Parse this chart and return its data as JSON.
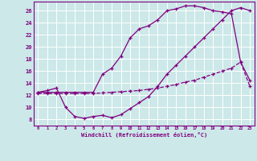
{
  "background_color": "#cce8e8",
  "grid_color": "#aacccc",
  "line_color": "#800080",
  "xlabel": "Windchill (Refroidissement éolien,°C)",
  "xlim": [
    -0.5,
    23.5
  ],
  "ylim": [
    7,
    27.5
  ],
  "yticks": [
    8,
    10,
    12,
    14,
    16,
    18,
    20,
    22,
    24,
    26
  ],
  "xticks": [
    0,
    1,
    2,
    3,
    4,
    5,
    6,
    7,
    8,
    9,
    10,
    11,
    12,
    13,
    14,
    15,
    16,
    17,
    18,
    19,
    20,
    21,
    22,
    23
  ],
  "curve1_x": [
    0,
    1,
    2,
    3,
    4,
    5,
    6,
    7,
    8,
    9,
    10,
    11,
    12,
    13,
    14,
    15,
    16,
    17,
    18,
    19,
    20,
    21,
    22,
    23
  ],
  "curve1_y": [
    12.5,
    12.8,
    13.2,
    10.0,
    8.5,
    8.2,
    8.5,
    8.7,
    8.3,
    8.8,
    9.8,
    10.8,
    11.8,
    13.5,
    15.5,
    17.0,
    18.5,
    20.0,
    21.5,
    23.0,
    24.5,
    26.0,
    26.5,
    26.0
  ],
  "curve2_x": [
    0,
    1,
    2,
    3,
    4,
    5,
    6,
    7,
    8,
    9,
    10,
    11,
    12,
    13,
    14,
    15,
    16,
    17,
    18,
    19,
    20,
    21,
    22,
    23
  ],
  "curve2_y": [
    12.5,
    12.5,
    12.5,
    12.5,
    12.5,
    12.5,
    12.5,
    15.5,
    16.5,
    18.5,
    21.5,
    23.0,
    23.5,
    24.5,
    26.0,
    26.3,
    26.8,
    26.8,
    26.5,
    26.0,
    25.8,
    25.5,
    17.5,
    14.5
  ],
  "curve3_x": [
    0,
    1,
    2,
    3,
    4,
    5,
    6,
    7,
    8,
    9,
    10,
    11,
    12,
    13,
    14,
    15,
    16,
    17,
    18,
    19,
    20,
    21,
    22,
    23
  ],
  "curve3_y": [
    12.3,
    12.3,
    12.3,
    12.3,
    12.3,
    12.3,
    12.3,
    12.4,
    12.5,
    12.6,
    12.7,
    12.8,
    13.0,
    13.2,
    13.5,
    13.8,
    14.2,
    14.5,
    15.0,
    15.5,
    16.0,
    16.5,
    17.5,
    13.5
  ]
}
